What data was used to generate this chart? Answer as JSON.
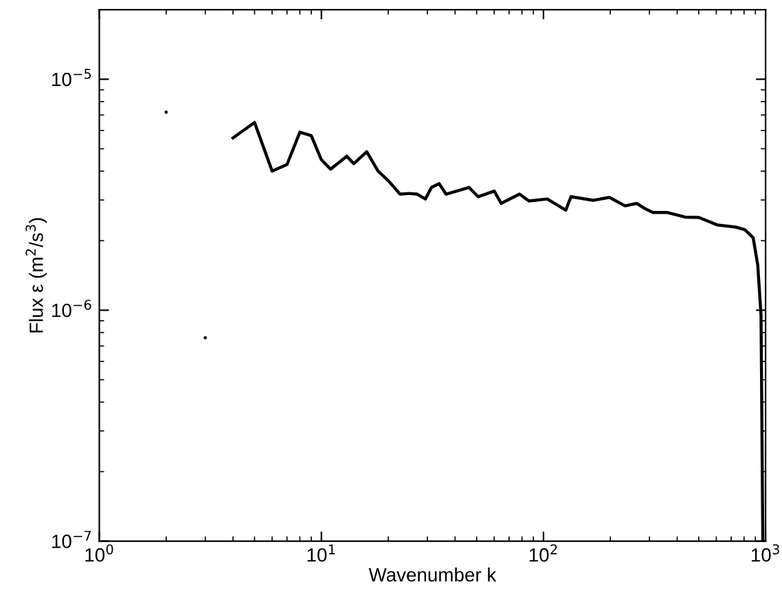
{
  "chart_data": {
    "type": "line",
    "xlabel": "Wavenumber k",
    "ylabel": "Flux ε (m$^{2}$/s$^{3}$)",
    "log": "xy",
    "grid": false,
    "xlim": [
      1,
      1000
    ],
    "ylim": [
      1e-07,
      2e-05
    ],
    "xticks": [
      {
        "value": 1,
        "label": "10$^{0}$"
      },
      {
        "value": 10,
        "label": "10$^{1}$"
      },
      {
        "value": 100,
        "label": "10$^{2}$"
      },
      {
        "value": 1000,
        "label": "10$^{3}$"
      }
    ],
    "yticks": [
      {
        "value": 1e-07,
        "label": "10$^{−7}$"
      },
      {
        "value": 1e-06,
        "label": "10$^{−6}$"
      },
      {
        "value": 1e-05,
        "label": "10$^{−5}$"
      }
    ],
    "series": [
      {
        "type": "scatter",
        "color": "#000000",
        "marker": "circle",
        "x": [
          2,
          3
        ],
        "values": [
          7.2e-06,
          7.6e-07
        ]
      },
      {
        "color": "#000000",
        "marker": "none",
        "line_style": "solid",
        "x": [
          4,
          5,
          6,
          7,
          8,
          9,
          10,
          11,
          13,
          14,
          16,
          18,
          20,
          22.6,
          24.8,
          27,
          29.4,
          31.3,
          33.9,
          36.4,
          46.2,
          50.8,
          60,
          64.5,
          78,
          86,
          104,
          126,
          133,
          167,
          198,
          233,
          263,
          283,
          311,
          359,
          434,
          501,
          606,
          733,
          807,
          879,
          922,
          954,
          972
        ],
        "values": [
          5.57e-06,
          6.5e-06,
          4e-06,
          4.27e-06,
          5.9e-06,
          5.7e-06,
          4.48e-06,
          4.08e-06,
          4.64e-06,
          4.31e-06,
          4.85e-06,
          4e-06,
          3.64e-06,
          3.18e-06,
          3.2e-06,
          3.18e-06,
          3.03e-06,
          3.4e-06,
          3.53e-06,
          3.18e-06,
          3.4e-06,
          3.1e-06,
          3.28e-06,
          2.9e-06,
          3.18e-06,
          2.97e-06,
          3.03e-06,
          2.71e-06,
          3.1e-06,
          2.99e-06,
          3.08e-06,
          2.83e-06,
          2.9e-06,
          2.77e-06,
          2.65e-06,
          2.65e-06,
          2.53e-06,
          2.52e-06,
          2.34e-06,
          2.29e-06,
          2.23e-06,
          2.06e-06,
          1.57e-06,
          9.5e-07,
          1e-07
        ]
      }
    ]
  }
}
